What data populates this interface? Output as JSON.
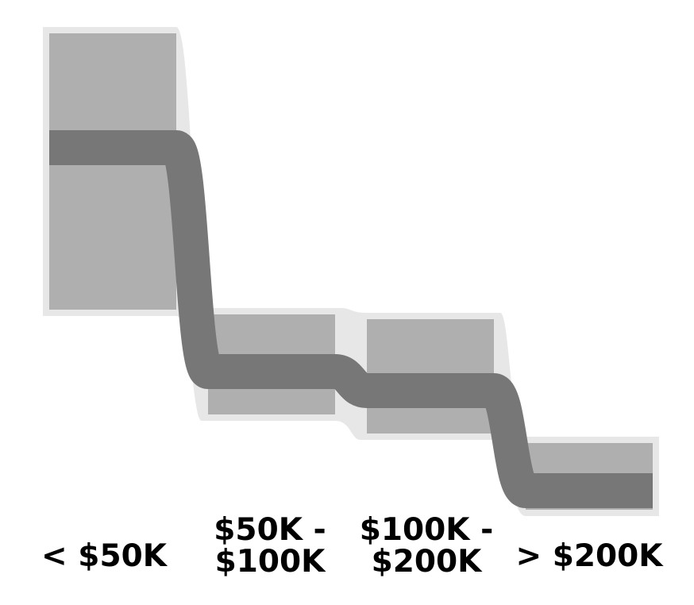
{
  "chart_data": {
    "type": "area",
    "categories": [
      [
        "< $50K"
      ],
      [
        "$50K -",
        "$100K"
      ],
      [
        "$100K -",
        "$200K"
      ],
      [
        "> $200K"
      ]
    ],
    "bands": [
      {
        "low": 0.42,
        "high": 1.0
      },
      {
        "low": 0.2,
        "high": 0.41
      },
      {
        "low": 0.16,
        "high": 0.4
      },
      {
        "low": 0.0,
        "high": 0.14
      }
    ],
    "center_line": [
      0.76,
      0.29,
      0.25,
      0.04
    ],
    "ylim": [
      0,
      1
    ],
    "grid": false,
    "legend": "none",
    "colors": {
      "halo": "#e7e7e7",
      "band": "#afafaf",
      "line": "#777777",
      "text": "#000000"
    }
  }
}
